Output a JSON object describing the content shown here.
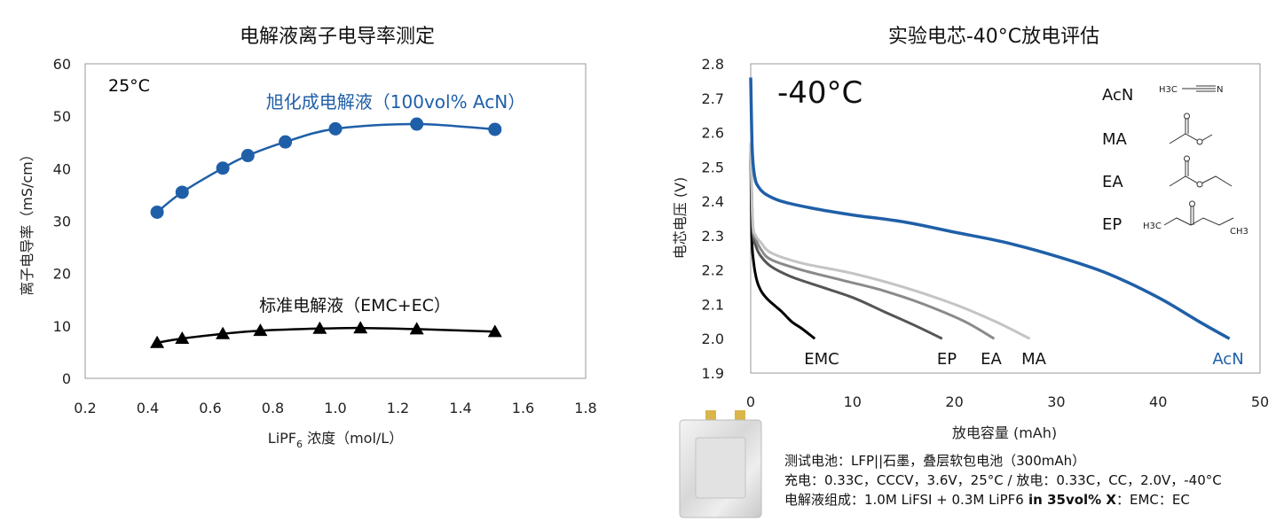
{
  "chart_data": [
    {
      "type": "line",
      "title": "电解液离子电导率测定",
      "xlabel_main": "LiPF",
      "xlabel_sub": "6",
      "xlabel_rest": " 浓度（mol/L）",
      "ylabel": "离子电导率（mS/cm）",
      "xlim": [
        0.2,
        1.8
      ],
      "ylim": [
        0,
        60
      ],
      "xticks": [
        "0.2",
        "0.4",
        "0.6",
        "0.8",
        "1.0",
        "1.2",
        "1.4",
        "1.6",
        "1.8"
      ],
      "yticks": [
        "0",
        "10",
        "20",
        "30",
        "40",
        "50",
        "60"
      ],
      "annotation": "25°C",
      "grid": false,
      "series": [
        {
          "name": "旭化成电解液（100vol% AcN）",
          "color": "#1f5fa8",
          "marker": "circle",
          "x": [
            0.43,
            0.51,
            0.64,
            0.72,
            0.84,
            1.0,
            1.26,
            1.51
          ],
          "y": [
            31.7,
            35.5,
            40.1,
            42.5,
            45.1,
            47.6,
            48.5,
            47.5
          ]
        },
        {
          "name": "标准电解液（EMC+EC）",
          "color": "#000000",
          "marker": "triangle",
          "x": [
            0.43,
            0.51,
            0.64,
            0.76,
            0.95,
            1.08,
            1.26,
            1.51
          ],
          "y": [
            6.8,
            7.6,
            8.5,
            9.1,
            9.5,
            9.6,
            9.4,
            8.9
          ]
        }
      ]
    },
    {
      "type": "line",
      "title": "实验电芯-40°C放电评估",
      "xlabel": "放电容量 (mAh)",
      "ylabel": "电芯电压 (V)",
      "xlim": [
        0,
        50
      ],
      "ylim": [
        1.9,
        2.8
      ],
      "xticks": [
        "0",
        "10",
        "20",
        "30",
        "40",
        "50"
      ],
      "yticks": [
        "1.9",
        "2.0",
        "2.1",
        "2.2",
        "2.3",
        "2.4",
        "2.5",
        "2.6",
        "2.7",
        "2.8"
      ],
      "annotation": "-40°C",
      "grid": false,
      "series": [
        {
          "name": "EMC",
          "color": "#000000",
          "x": [
            0,
            0.1,
            0.3,
            0.6,
            1.0,
            1.5,
            2.2,
            3.0,
            4.0,
            5.0,
            6.3
          ],
          "y": [
            2.55,
            2.3,
            2.22,
            2.17,
            2.14,
            2.12,
            2.1,
            2.08,
            2.05,
            2.03,
            2.0
          ]
        },
        {
          "name": "EP",
          "color": "#555555",
          "x": [
            0,
            0.2,
            0.5,
            1.0,
            2.0,
            4.0,
            7.0,
            10.0,
            13.0,
            16.0,
            18.8
          ],
          "y": [
            2.55,
            2.32,
            2.27,
            2.24,
            2.21,
            2.18,
            2.15,
            2.12,
            2.08,
            2.04,
            2.0
          ]
        },
        {
          "name": "EA",
          "color": "#8a8a8a",
          "x": [
            0,
            0.2,
            0.5,
            1.0,
            2.0,
            5.0,
            9.0,
            13.0,
            17.0,
            21.0,
            23.9
          ],
          "y": [
            2.56,
            2.33,
            2.29,
            2.26,
            2.23,
            2.2,
            2.17,
            2.14,
            2.1,
            2.05,
            2.0
          ]
        },
        {
          "name": "MA",
          "color": "#c4c4c4",
          "x": [
            0,
            0.2,
            0.5,
            1.0,
            2.0,
            5.0,
            10.0,
            15.0,
            20.0,
            24.0,
            27.4
          ],
          "y": [
            2.57,
            2.34,
            2.3,
            2.28,
            2.25,
            2.22,
            2.19,
            2.15,
            2.1,
            2.05,
            2.0
          ]
        },
        {
          "name": "AcN",
          "color": "#1f5fa8",
          "x": [
            0,
            0.15,
            0.4,
            0.8,
            1.5,
            3.0,
            6.0,
            10.0,
            15.0,
            20.0,
            25.0,
            30.0,
            35.0,
            40.0,
            44.0,
            47.0
          ],
          "y": [
            2.76,
            2.55,
            2.47,
            2.44,
            2.42,
            2.4,
            2.38,
            2.36,
            2.34,
            2.31,
            2.28,
            2.24,
            2.19,
            2.12,
            2.05,
            2.0
          ]
        }
      ]
    }
  ],
  "molecules": [
    {
      "label": "AcN",
      "structure_icon": "acetonitrile-structure-icon",
      "structure_labels": [
        "H3C",
        "N"
      ]
    },
    {
      "label": "MA",
      "structure_icon": "methyl-acetate-structure-icon",
      "structure_labels": []
    },
    {
      "label": "EA",
      "structure_icon": "ethyl-acetate-structure-icon",
      "structure_labels": []
    },
    {
      "label": "EP",
      "structure_icon": "ethyl-propionate-structure-icon",
      "structure_labels": [
        "H3C",
        "CH3"
      ]
    }
  ],
  "notes": {
    "line1": "测试电池：LFP||石墨，叠层软包电池（300mAh）",
    "line2": "充电：0.33C，CCCV，3.6V，25°C / 放电：0.33C，CC，2.0V，-40°C",
    "line3_a": "电解液组成：1.0M LiFSI + 0.3M LiPF6",
    "line3_b": " in 35vol% X",
    "line3_c": "：EMC：EC"
  },
  "photo": {
    "icon": "pouch-cell-photo-icon"
  }
}
